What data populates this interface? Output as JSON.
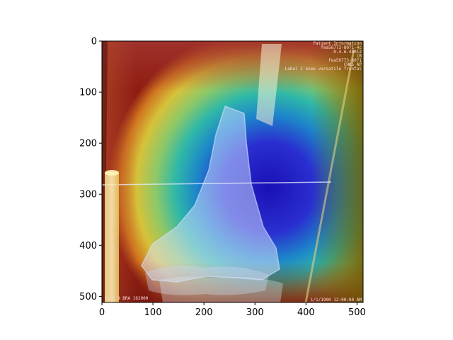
{
  "chart_data": {
    "type": "heatmap",
    "description_kind": "image with attention heatmap overlay",
    "title": "",
    "xlabel": "",
    "ylabel": "",
    "xlim": [
      0,
      512
    ],
    "ylim": [
      512,
      0
    ],
    "x_ticks": [
      0,
      100,
      200,
      300,
      400,
      500
    ],
    "y_ticks": [
      0,
      100,
      200,
      300,
      400,
      500
    ],
    "x_tick_labels": [
      "0",
      "100",
      "200",
      "300",
      "400",
      "500"
    ],
    "y_tick_labels": [
      "0",
      "100",
      "200",
      "300",
      "400",
      "500"
    ],
    "colormap": "jet",
    "overlay_alpha": 0.5,
    "image_text": {
      "top_right": [
        "Patient Information",
        "fea56773-8071-4c",
        "0.4.6.40012",
        "CR",
        "fea56773-8071",
        "CHKS_AP",
        "Label 2 knee versatile frontal"
      ],
      "bottom_left": "R: 0.9 BRA 162000",
      "bottom_right": "1/1/1900 12:00:00 AM"
    },
    "heat_regions": [
      {
        "name": "cold-center",
        "x": [
          180,
          390
        ],
        "y": [
          130,
          400
        ],
        "level": 0.05
      },
      {
        "name": "warm-top-edge",
        "x": [
          0,
          512
        ],
        "y": [
          0,
          40
        ],
        "level": 0.95
      },
      {
        "name": "warm-bottom-edge",
        "x": [
          0,
          512
        ],
        "y": [
          470,
          512
        ],
        "level": 0.9
      }
    ],
    "grid": false,
    "legend": "none"
  }
}
